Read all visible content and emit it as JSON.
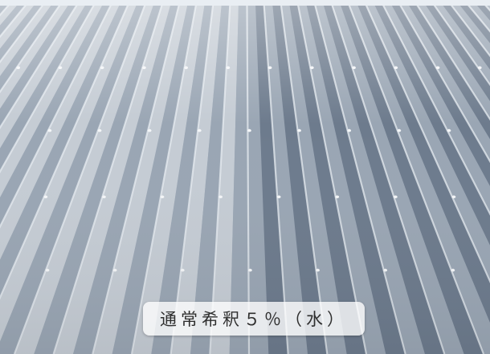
{
  "photo": {
    "subject": "corrugated-metal-roof",
    "colors": {
      "sky": "#e9eef3",
      "metal_light": "#c5ccd4",
      "metal_mid": "#9aa6b4",
      "metal_dark": "#6d7b8d",
      "rib_highlight": "#e7ecf1",
      "fastener": "#f4f6f8"
    }
  },
  "caption": {
    "text": "通常希釈５％（水）"
  }
}
